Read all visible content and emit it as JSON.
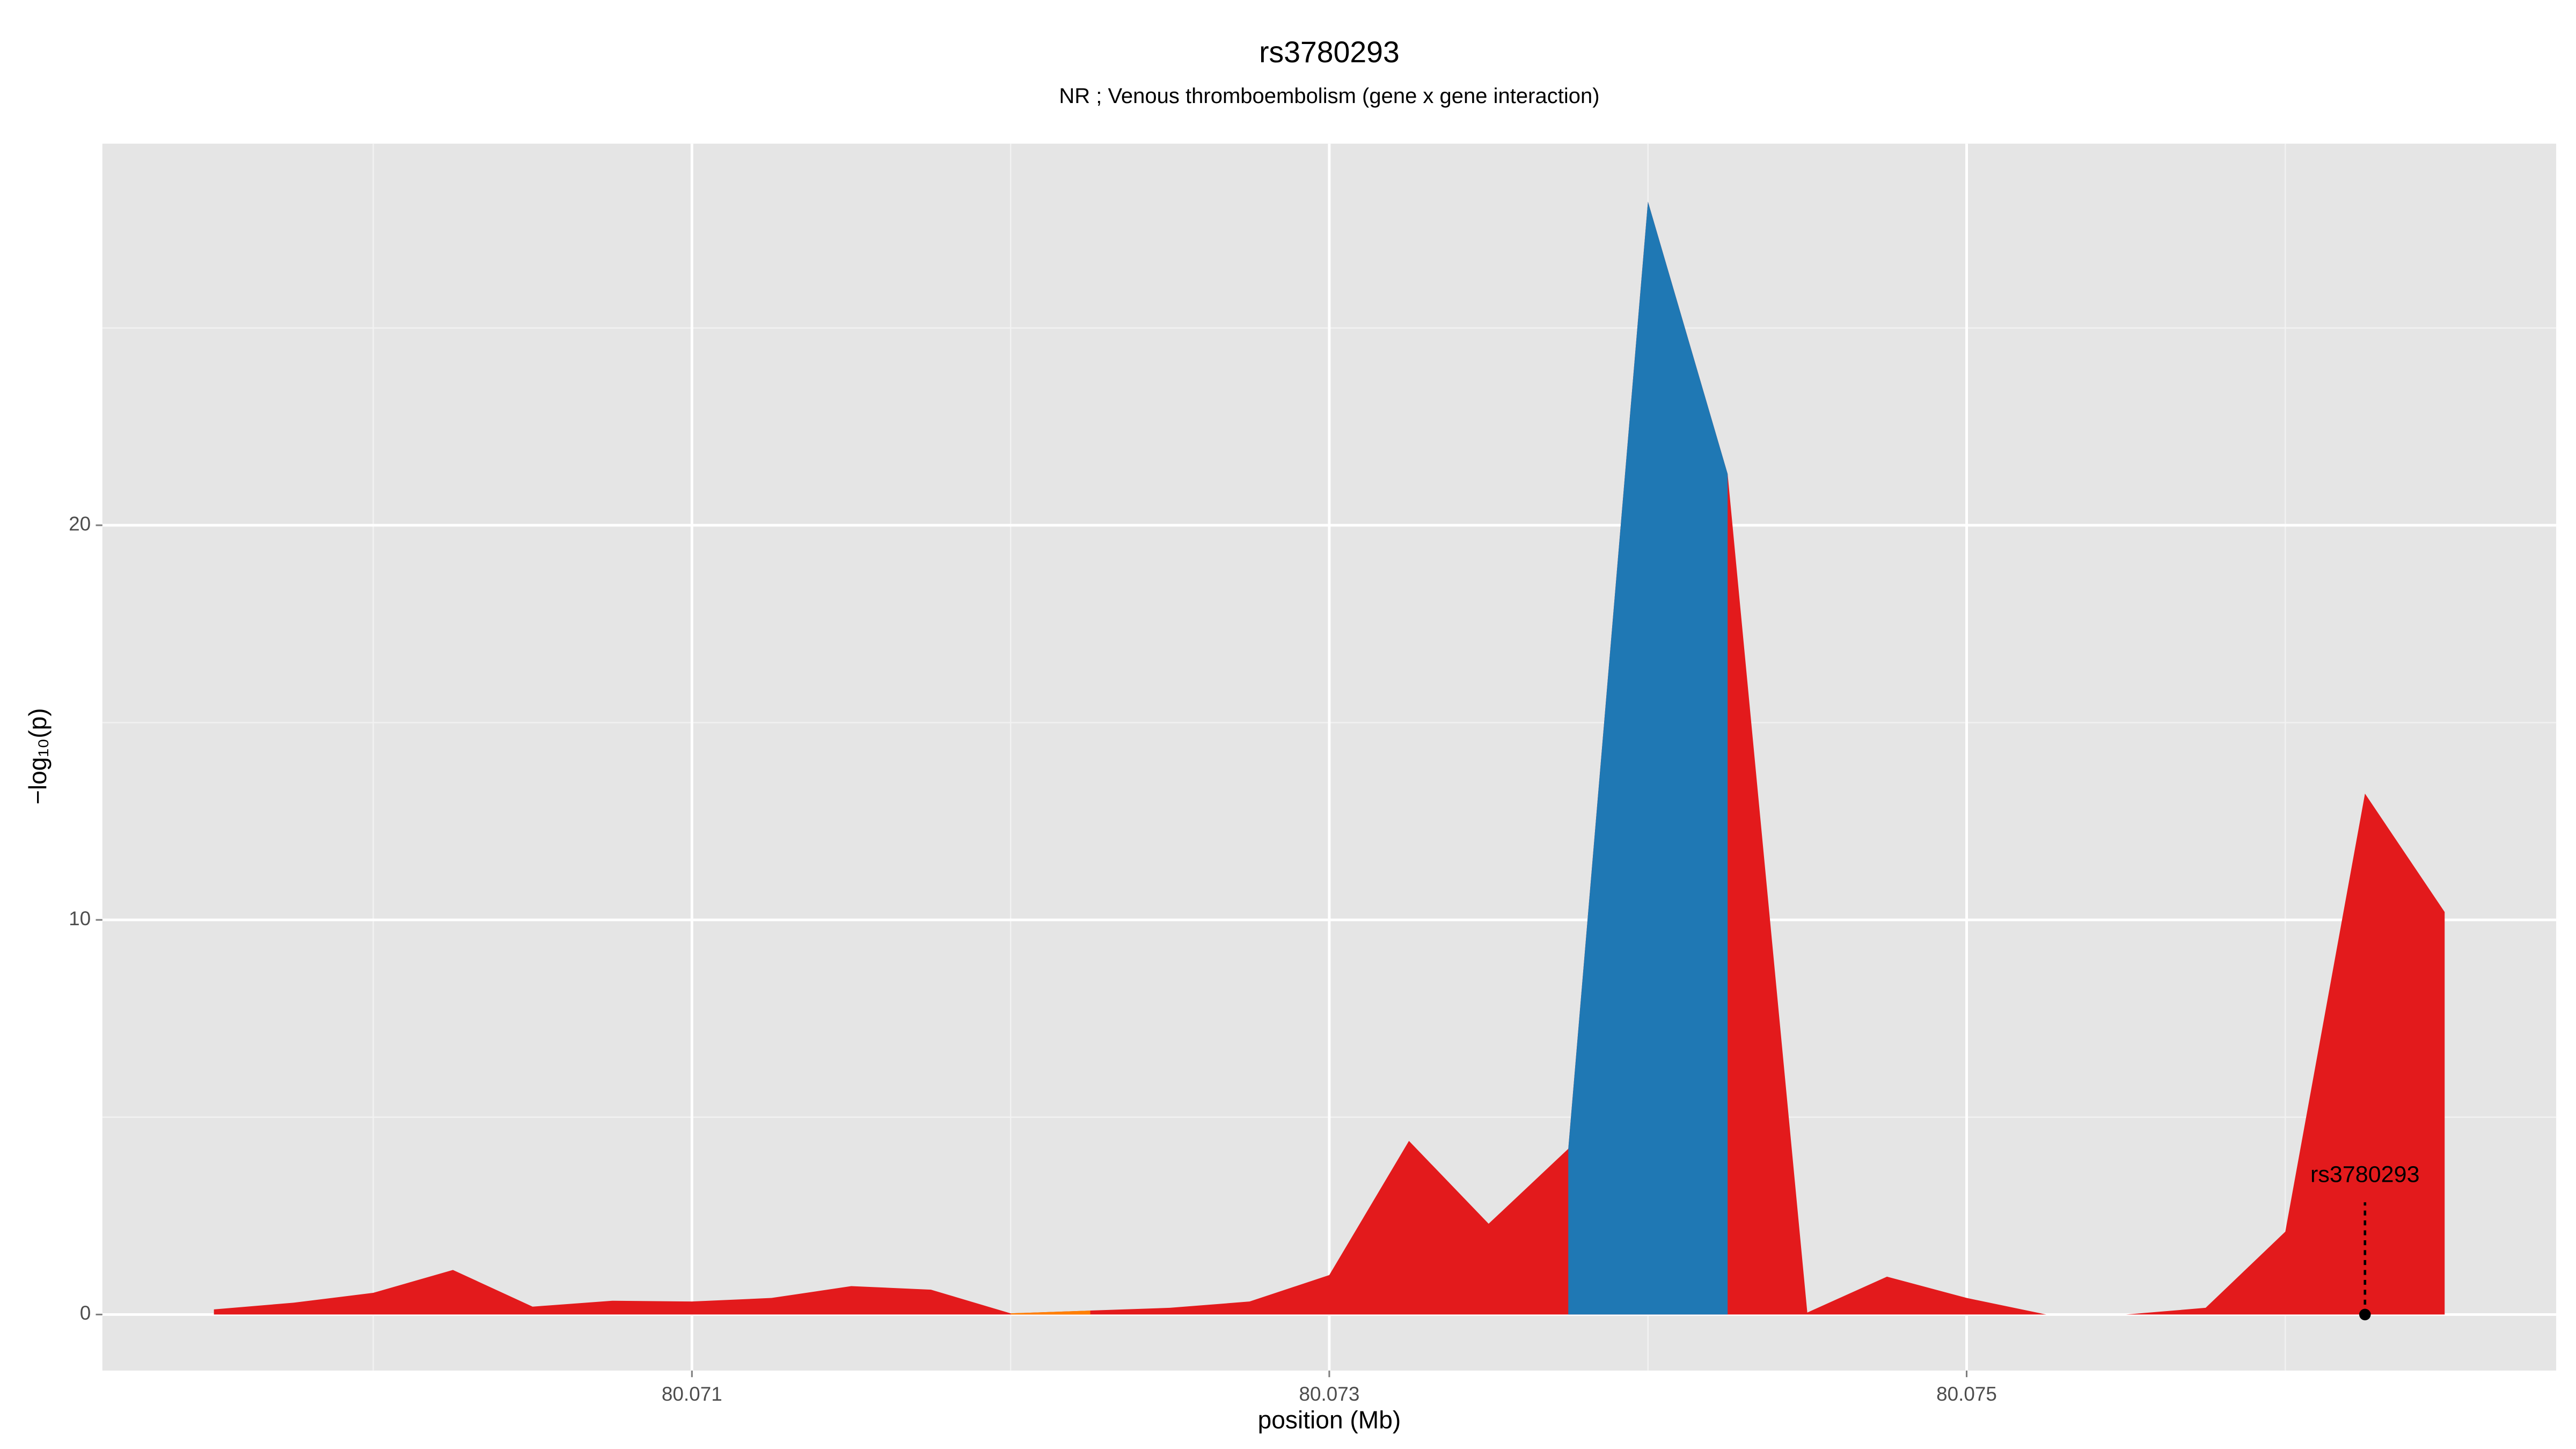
{
  "chart_data": {
    "type": "area",
    "title": "rs3780293",
    "subtitle": "NR ; Venous thromboembolism (gene x gene interaction)",
    "x_label": "position (Mb)",
    "y_label": "−log₁₀(p)",
    "x": [
      80.0695,
      80.06975,
      80.07,
      80.07025,
      80.0705,
      80.07075,
      80.071,
      80.07125,
      80.0715,
      80.07175,
      80.072,
      80.07225,
      80.0725,
      80.07275,
      80.073,
      80.07325,
      80.0735,
      80.07375,
      80.074,
      80.07425,
      80.0745,
      80.07475,
      80.075,
      80.07525,
      80.0755,
      80.07575,
      80.076,
      80.07625,
      80.0765
    ],
    "series": [
      {
        "color": "#e31a1c",
        "values": [
          0.13,
          0.3,
          0.55,
          1.13,
          0.2,
          0.35,
          0.33,
          0.42,
          0.72,
          0.63,
          0.03,
          0.1,
          0.17,
          0.33,
          1.0,
          4.4,
          2.3,
          4.2,
          28.2,
          21.3,
          0.05,
          0.96,
          0.42,
          0.0,
          0.0,
          0.17,
          2.1,
          13.2,
          10.2
        ]
      },
      {
        "color": "#ff7f00",
        "values": [
          null,
          null,
          null,
          null,
          null,
          null,
          null,
          null,
          null,
          null,
          0.03,
          0.1,
          null,
          null,
          null,
          null,
          null,
          null,
          null,
          null,
          null,
          null,
          null,
          null,
          null,
          null,
          null,
          null,
          null
        ]
      },
      {
        "color": "#1f78b4",
        "values": [
          null,
          null,
          null,
          null,
          null,
          null,
          null,
          null,
          null,
          null,
          null,
          null,
          null,
          null,
          null,
          null,
          null,
          4.2,
          28.2,
          21.3,
          null,
          null,
          null,
          null,
          null,
          null,
          null,
          null,
          null
        ]
      }
    ],
    "annotation": {
      "text": "rs3780293",
      "x": 80.07625,
      "y": 0
    },
    "xlim": [
      80.06915,
      80.07685
    ],
    "ylim": [
      -1.42,
      29.67
    ],
    "xticks": [
      80.071,
      80.073,
      80.075
    ],
    "yticks": [
      0,
      10,
      20
    ],
    "grid": true
  }
}
